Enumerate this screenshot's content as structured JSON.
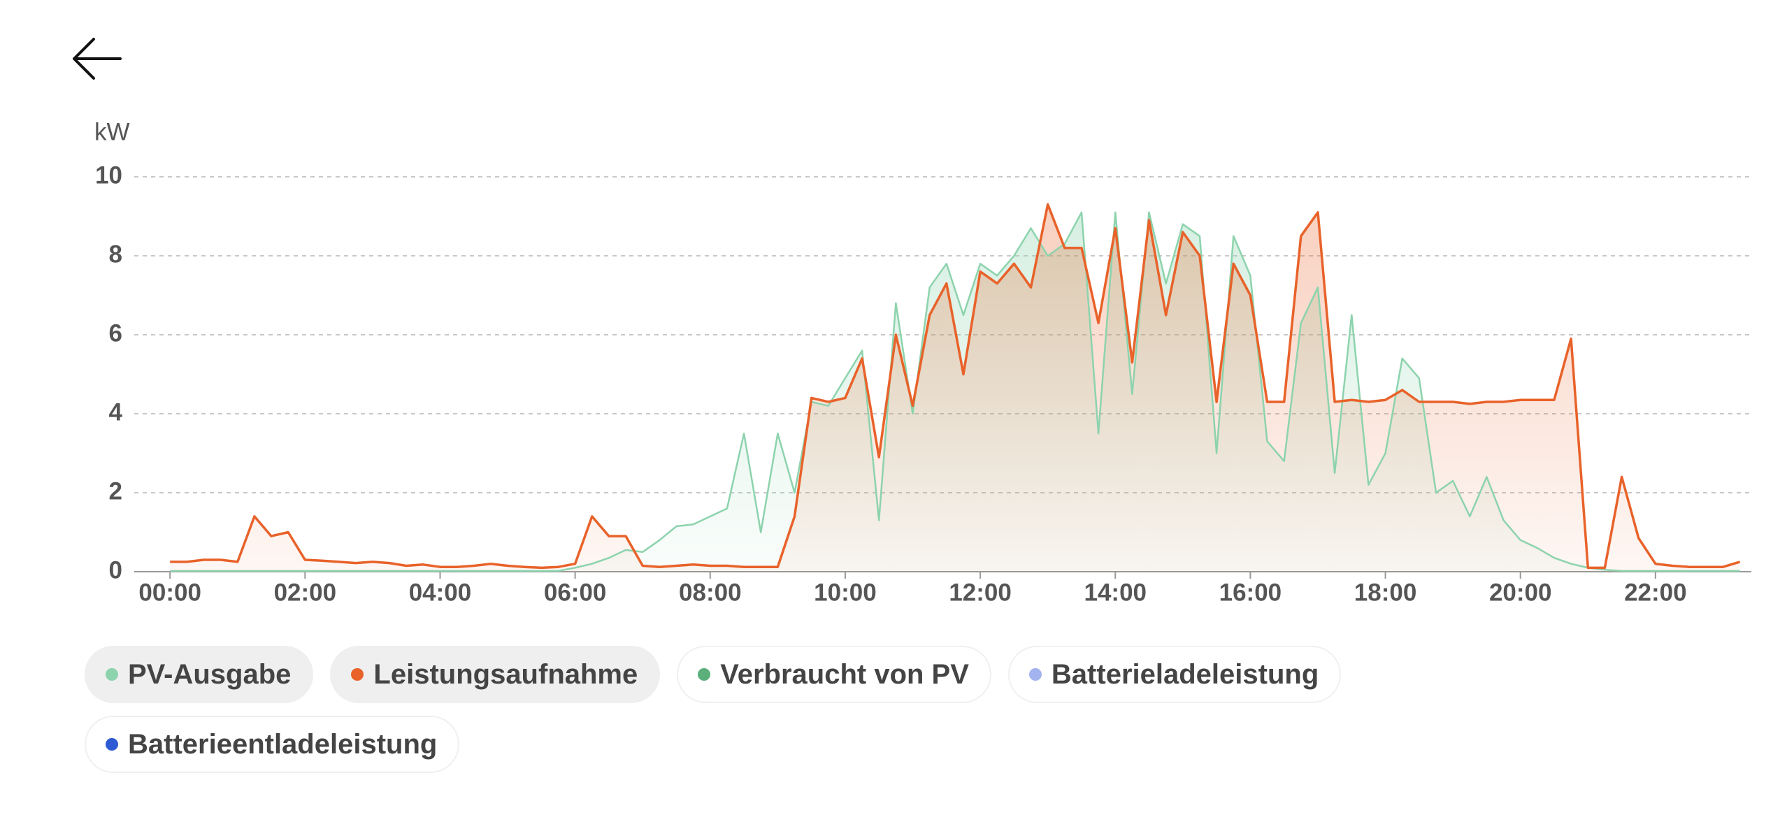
{
  "chart_data": {
    "type": "area",
    "y_unit": "kW",
    "x": [
      0,
      0.25,
      0.5,
      0.75,
      1,
      1.25,
      1.5,
      1.75,
      2,
      2.25,
      2.5,
      2.75,
      3,
      3.25,
      3.5,
      3.75,
      4,
      4.25,
      4.5,
      4.75,
      5,
      5.25,
      5.5,
      5.75,
      6,
      6.25,
      6.5,
      6.75,
      7,
      7.25,
      7.5,
      7.75,
      8,
      8.25,
      8.5,
      8.75,
      9,
      9.25,
      9.5,
      9.75,
      10,
      10.25,
      10.5,
      10.75,
      11,
      11.25,
      11.5,
      11.75,
      12,
      12.25,
      12.5,
      12.75,
      13,
      13.25,
      13.5,
      13.75,
      14,
      14.25,
      14.5,
      14.75,
      15,
      15.25,
      15.5,
      15.75,
      16,
      16.25,
      16.5,
      16.75,
      17,
      17.25,
      17.5,
      17.75,
      18,
      18.25,
      18.5,
      18.75,
      19,
      19.25,
      19.5,
      19.75,
      20,
      20.25,
      20.5,
      20.75,
      21,
      21.25,
      21.5,
      21.75,
      22,
      22.25,
      22.5,
      22.75,
      23,
      23.25
    ],
    "xlim": [
      -0.53,
      23.42
    ],
    "xticks": [
      {
        "value": 0,
        "label": "00:00"
      },
      {
        "value": 2,
        "label": "02:00"
      },
      {
        "value": 4,
        "label": "04:00"
      },
      {
        "value": 6,
        "label": "06:00"
      },
      {
        "value": 8,
        "label": "08:00"
      },
      {
        "value": 10,
        "label": "10:00"
      },
      {
        "value": 12,
        "label": "12:00"
      },
      {
        "value": 14,
        "label": "14:00"
      },
      {
        "value": 16,
        "label": "16:00"
      },
      {
        "value": 18,
        "label": "18:00"
      },
      {
        "value": 20,
        "label": "20:00"
      },
      {
        "value": 22,
        "label": "22:00"
      }
    ],
    "ylim": [
      0,
      10
    ],
    "yticks": [
      0,
      2,
      4,
      6,
      8,
      10
    ],
    "grid": true,
    "series": [
      {
        "name": "PV-Ausgabe",
        "color": "#8dd3ad",
        "values": [
          0.02,
          0.02,
          0.02,
          0.02,
          0.02,
          0.02,
          0.02,
          0.02,
          0.02,
          0.02,
          0.02,
          0.02,
          0.02,
          0.02,
          0.02,
          0.02,
          0.02,
          0.02,
          0.02,
          0.02,
          0.02,
          0.02,
          0.02,
          0.02,
          0.1,
          0.2,
          0.35,
          0.55,
          0.5,
          0.8,
          1.15,
          1.2,
          1.4,
          1.6,
          3.5,
          1.0,
          3.5,
          2.0,
          4.3,
          4.2,
          4.9,
          5.6,
          1.3,
          6.8,
          4.0,
          7.2,
          7.8,
          6.5,
          7.8,
          7.5,
          8.0,
          8.7,
          8.0,
          8.3,
          9.1,
          3.5,
          9.1,
          4.5,
          9.1,
          7.3,
          8.8,
          8.5,
          3.0,
          8.5,
          7.5,
          3.3,
          2.8,
          6.3,
          7.2,
          2.5,
          6.5,
          2.2,
          3.0,
          5.4,
          4.9,
          2.0,
          2.3,
          1.4,
          2.4,
          1.3,
          0.8,
          0.6,
          0.35,
          0.2,
          0.1,
          0.05,
          0.02,
          0.02,
          0.02,
          0.02,
          0.02,
          0.02,
          0.02,
          0.02
        ]
      },
      {
        "name": "Leistungsaufnahme",
        "color": "#e8622a",
        "values": [
          0.25,
          0.25,
          0.3,
          0.3,
          0.25,
          1.4,
          0.9,
          1.0,
          0.3,
          0.28,
          0.25,
          0.22,
          0.25,
          0.22,
          0.15,
          0.18,
          0.12,
          0.12,
          0.15,
          0.2,
          0.15,
          0.12,
          0.1,
          0.12,
          0.2,
          1.4,
          0.9,
          0.9,
          0.15,
          0.12,
          0.15,
          0.18,
          0.15,
          0.15,
          0.12,
          0.12,
          0.12,
          1.4,
          4.4,
          4.3,
          4.4,
          5.4,
          2.9,
          6.0,
          4.2,
          6.5,
          7.3,
          5.0,
          7.6,
          7.3,
          7.8,
          7.2,
          9.3,
          8.2,
          8.2,
          6.3,
          8.7,
          5.3,
          8.9,
          6.5,
          8.6,
          8.0,
          4.3,
          7.8,
          7.0,
          4.3,
          4.3,
          8.5,
          9.1,
          4.3,
          4.35,
          4.3,
          4.35,
          4.6,
          4.3,
          4.3,
          4.3,
          4.25,
          4.3,
          4.3,
          4.35,
          4.35,
          4.35,
          5.9,
          0.1,
          0.1,
          2.4,
          0.85,
          0.2,
          0.15,
          0.12,
          0.12,
          0.12,
          0.25
        ]
      },
      {
        "name": "Verbraucht von PV",
        "color": "#5aaf7a",
        "hidden": true
      },
      {
        "name": "Batterieladeleistung",
        "color": "#a3b3ef",
        "hidden": true
      },
      {
        "name": "Batterieentladeleistung",
        "color": "#2e5bd4",
        "hidden": true
      }
    ]
  }
}
